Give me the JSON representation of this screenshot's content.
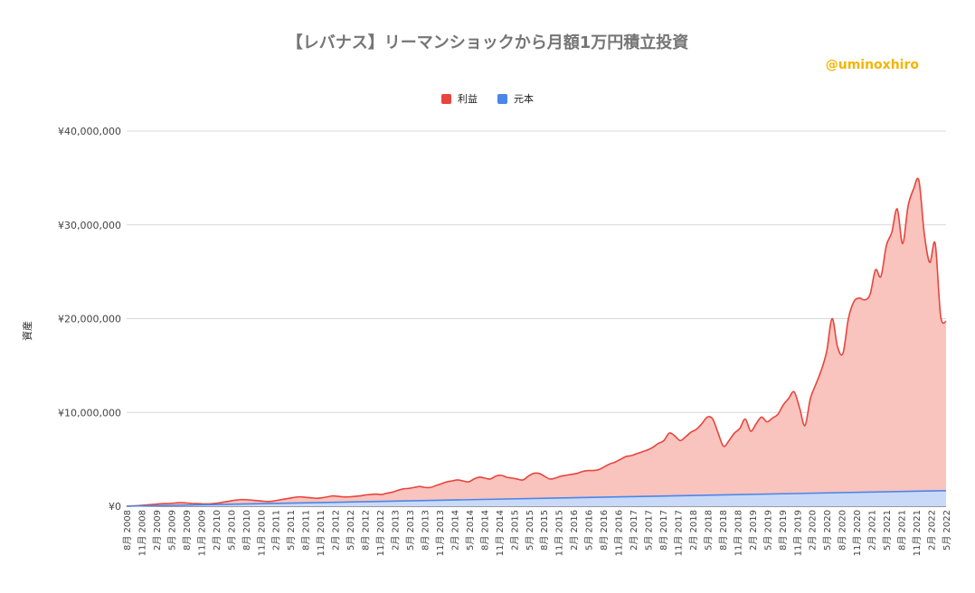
{
  "watermark": "@uminoxhiro",
  "colors": {
    "profit_line": "#e8453c",
    "profit_fill": "#f9c3be",
    "principal_line": "#4a86e8",
    "principal_fill": "#c9daf8"
  },
  "chart_data": {
    "type": "area",
    "title": "【レバナス】リーマンショックから月額1万円積立投資",
    "xlabel": "",
    "ylabel": "資産",
    "legend_position": "top",
    "grid": true,
    "ylim": [
      0,
      40000000
    ],
    "y_ticks": [
      "¥0",
      "¥10,000,000",
      "¥20,000,000",
      "¥30,000,000",
      "¥40,000,000"
    ],
    "x_ticks": [
      "8月 2008",
      "11月 2008",
      "2月 2009",
      "5月 2009",
      "8月 2009",
      "11月 2009",
      "2月 2010",
      "5月 2010",
      "8月 2010",
      "11月 2010",
      "2月 2011",
      "5月 2011",
      "8月 2011",
      "11月 2011",
      "2月 2012",
      "5月 2012",
      "8月 2012",
      "11月 2012",
      "2月 2013",
      "5月 2013",
      "8月 2013",
      "11月 2013",
      "2月 2014",
      "5月 2014",
      "8月 2014",
      "11月 2014",
      "2月 2015",
      "5月 2015",
      "8月 2015",
      "11月 2015",
      "2月 2016",
      "5月 2016",
      "8月 2016",
      "11月 2016",
      "2月 2017",
      "5月 2017",
      "8月 2017",
      "11月 2017",
      "2月 2018",
      "5月 2018",
      "8月 2018",
      "11月 2018",
      "2月 2019",
      "5月 2019",
      "8月 2019",
      "11月 2019",
      "2月 2020",
      "5月 2020",
      "8月 2020",
      "11月 2020",
      "2月 2021",
      "5月 2021",
      "8月 2021",
      "11月 2021",
      "2月 2022",
      "5月 2022"
    ],
    "series": [
      {
        "name": "利益",
        "values": [
          10000,
          30000,
          60000,
          100000,
          150000,
          200000,
          250000,
          280000,
          300000,
          350000,
          380000,
          350000,
          300000,
          280000,
          250000,
          250000,
          280000,
          350000,
          450000,
          550000,
          650000,
          700000,
          700000,
          650000,
          600000,
          550000,
          500000,
          550000,
          650000,
          750000,
          850000,
          950000,
          1000000,
          950000,
          900000,
          850000,
          900000,
          1000000,
          1100000,
          1050000,
          1000000,
          1000000,
          1050000,
          1100000,
          1200000,
          1250000,
          1300000,
          1250000,
          1400000,
          1500000,
          1700000,
          1850000,
          1900000,
          2000000,
          2100000,
          2000000,
          2000000,
          2200000,
          2400000,
          2600000,
          2700000,
          2800000,
          2700000,
          2600000,
          2900000,
          3100000,
          3000000,
          2900000,
          3200000,
          3300000,
          3100000,
          3000000,
          2900000,
          2800000,
          3200000,
          3500000,
          3500000,
          3200000,
          2900000,
          3000000,
          3200000,
          3300000,
          3400000,
          3500000,
          3700000,
          3800000,
          3800000,
          3900000,
          4200000,
          4500000,
          4700000,
          5000000,
          5300000,
          5400000,
          5600000,
          5800000,
          6000000,
          6300000,
          6700000,
          7000000,
          7800000,
          7500000,
          7000000,
          7400000,
          7900000,
          8200000,
          8800000,
          9500000,
          9300000,
          7800000,
          6400000,
          7000000,
          7800000,
          8300000,
          9300000,
          8000000,
          8800000,
          9500000,
          9000000,
          9400000,
          9800000,
          10800000,
          11500000,
          12200000,
          10500000,
          8600000,
          11500000,
          13000000,
          14500000,
          16500000,
          20000000,
          17000000,
          16300000,
          20000000,
          21800000,
          22200000,
          22000000,
          22600000,
          25200000,
          24500000,
          27800000,
          29200000,
          31700000,
          28000000,
          32000000,
          33800000,
          34700000,
          29000000,
          26000000,
          28000000,
          20300000,
          19700000
        ]
      },
      {
        "name": "元本",
        "values": [
          0,
          1660000
        ]
      }
    ]
  }
}
